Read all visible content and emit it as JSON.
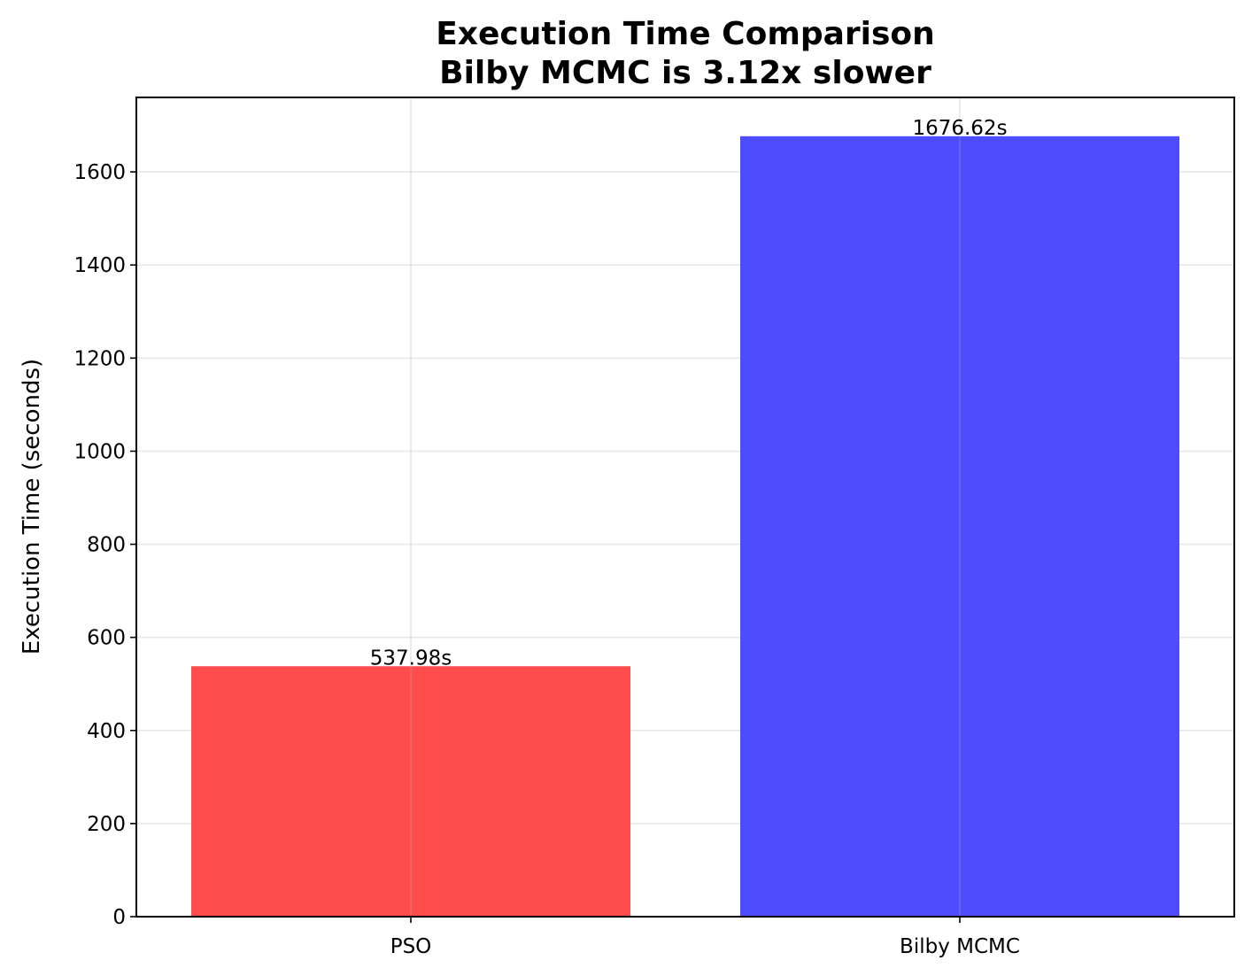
{
  "chart_data": {
    "type": "bar",
    "title_lines": [
      "Execution Time Comparison",
      "Bilby MCMC is 3.12x slower"
    ],
    "xlabel": "",
    "ylabel": "Execution Time (seconds)",
    "categories": [
      "PSO",
      "Bilby MCMC"
    ],
    "values": [
      537.98,
      1676.62
    ],
    "value_labels": [
      "537.98s",
      "1676.62s"
    ],
    "colors": [
      "#ff4d4d",
      "#4d4dff"
    ],
    "ylim": [
      0,
      1760
    ],
    "yticks": [
      0,
      200,
      400,
      600,
      800,
      1000,
      1200,
      1400,
      1600
    ],
    "grid": true
  }
}
